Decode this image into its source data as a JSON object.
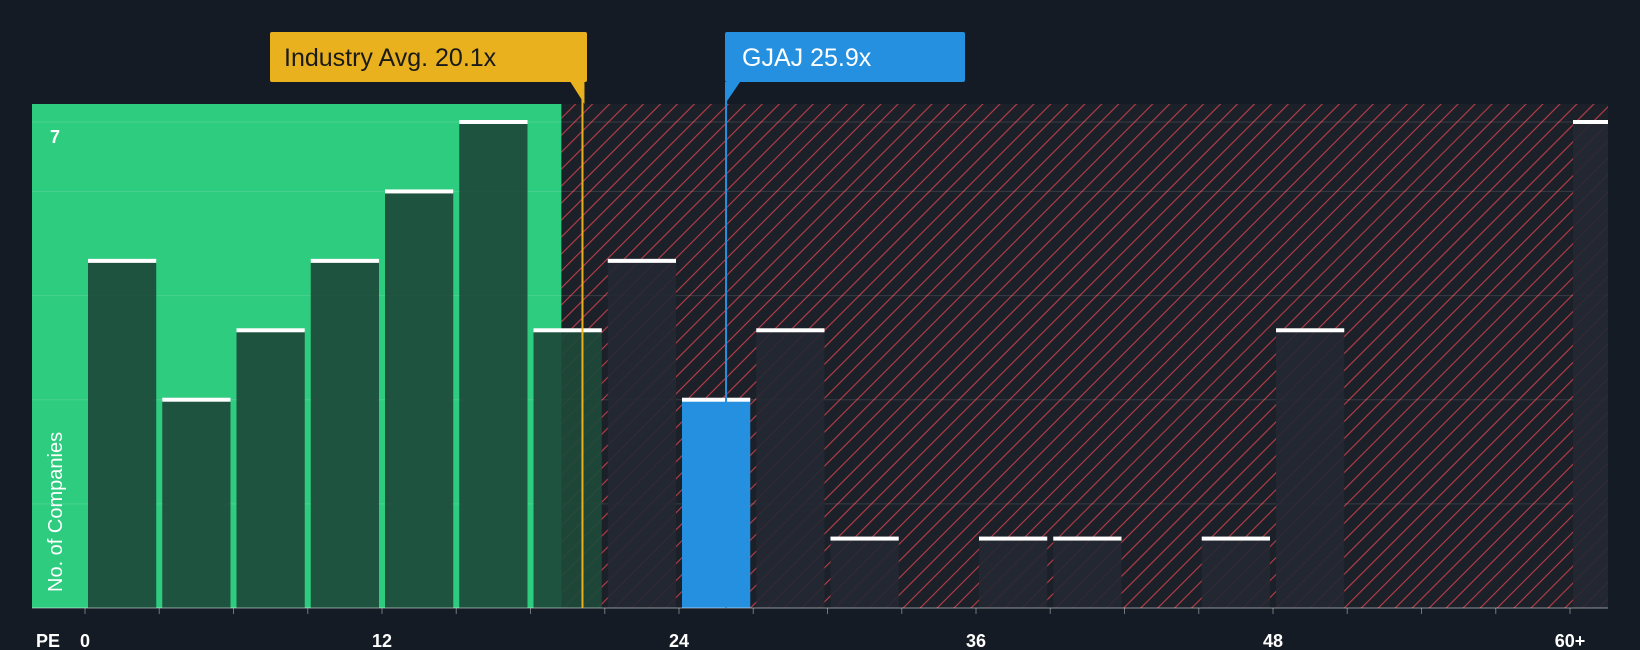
{
  "chart_data": {
    "type": "bar",
    "title": "",
    "xlabel": "PE",
    "ylabel": "No. of Companies",
    "x_ticks": [
      "0",
      "12",
      "24",
      "36",
      "48",
      "60+"
    ],
    "y_ticks": [
      "7"
    ],
    "ylim": [
      0,
      7
    ],
    "bin_width": 3,
    "fair_range_max": 19.25,
    "bins": [
      {
        "start": 0,
        "count": 5
      },
      {
        "start": 3,
        "count": 3
      },
      {
        "start": 6,
        "count": 4
      },
      {
        "start": 9,
        "count": 5
      },
      {
        "start": 12,
        "count": 6
      },
      {
        "start": 15,
        "count": 7
      },
      {
        "start": 18,
        "count": 4
      },
      {
        "start": 21,
        "count": 5
      },
      {
        "start": 24,
        "count": 3,
        "highlight": true
      },
      {
        "start": 27,
        "count": 4
      },
      {
        "start": 30,
        "count": 1
      },
      {
        "start": 33,
        "count": 0
      },
      {
        "start": 36,
        "count": 1
      },
      {
        "start": 39,
        "count": 1
      },
      {
        "start": 42,
        "count": 0
      },
      {
        "start": 45,
        "count": 1
      },
      {
        "start": 48,
        "count": 4
      },
      {
        "start": 51,
        "count": 0
      },
      {
        "start": 54,
        "count": 0
      },
      {
        "start": 57,
        "count": 0
      },
      {
        "start": 60,
        "count": 7
      }
    ],
    "industry_avg": {
      "label": "Industry Avg. 20.1x",
      "value": 20.1
    },
    "company": {
      "label": "GJAJ 25.9x",
      "value": 25.9
    }
  },
  "colors": {
    "background": "#151b24",
    "fair_zone": "#2ecc7f",
    "bar_dark": "#1d4a3a",
    "bar_hatched": "#232832",
    "hatch": "#d9434b",
    "highlight": "#2590e0",
    "industry": "#eab11e",
    "cap": "#ffffff"
  }
}
